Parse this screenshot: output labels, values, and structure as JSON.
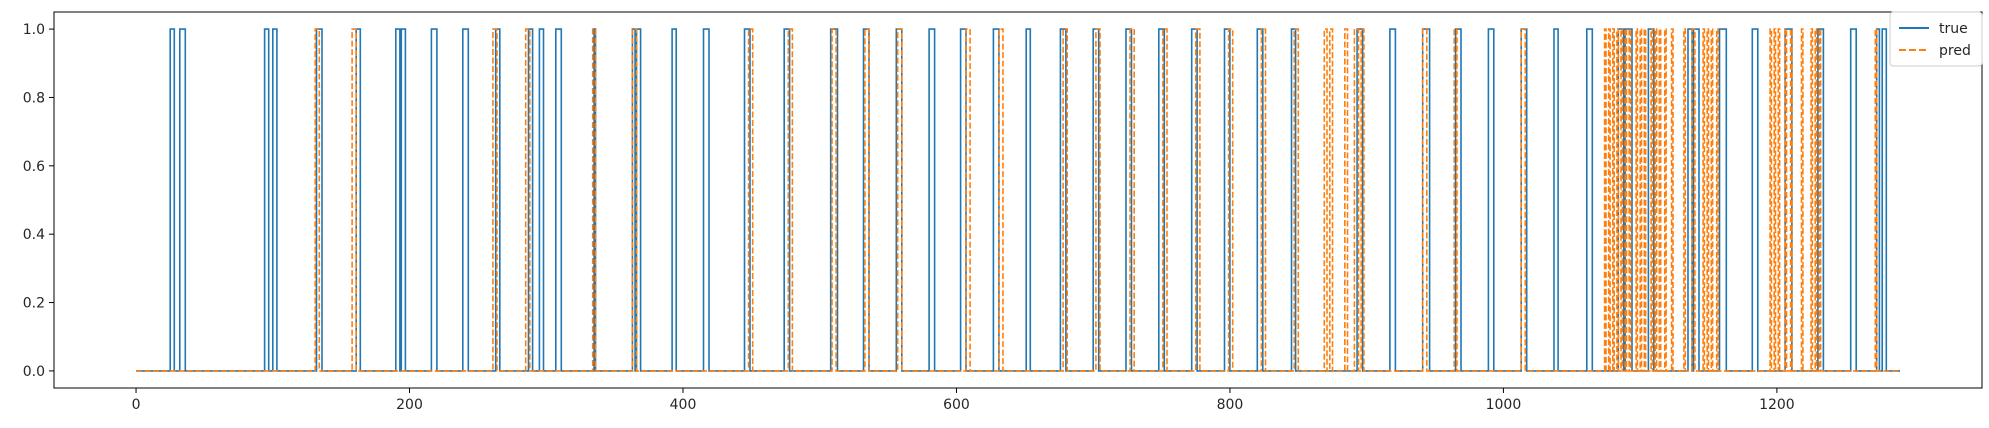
{
  "chart_data": {
    "type": "line",
    "title": "",
    "xlabel": "",
    "ylabel": "",
    "xlim": [
      -60,
      1350
    ],
    "ylim": [
      -0.05,
      1.05
    ],
    "x_ticks": [
      0,
      200,
      400,
      600,
      800,
      1000,
      1200
    ],
    "y_ticks": [
      0.0,
      0.2,
      0.4,
      0.6,
      0.8,
      1.0
    ],
    "x_tick_labels": [
      "0",
      "200",
      "400",
      "600",
      "800",
      "1000",
      "1200"
    ],
    "y_tick_labels": [
      "0.0",
      "0.2",
      "0.4",
      "0.6",
      "0.8",
      "1.0"
    ],
    "x_max": 1290,
    "grid": false,
    "legend_position": "top-right",
    "series": [
      {
        "name": "true",
        "color": "#1f77b4",
        "style": "solid",
        "pulses": [
          [
            25,
            28
          ],
          [
            32,
            36
          ],
          [
            94,
            97
          ],
          [
            100,
            103
          ],
          [
            132,
            136
          ],
          [
            161,
            164
          ],
          [
            190,
            193
          ],
          [
            194,
            197
          ],
          [
            216,
            220
          ],
          [
            239,
            243
          ],
          [
            263,
            266
          ],
          [
            287,
            290
          ],
          [
            295,
            298
          ],
          [
            307,
            311
          ],
          [
            335,
            336
          ],
          [
            363,
            365
          ],
          [
            366,
            369
          ],
          [
            392,
            395
          ],
          [
            415,
            419
          ],
          [
            445,
            449
          ],
          [
            474,
            478
          ],
          [
            508,
            513
          ],
          [
            532,
            536
          ],
          [
            556,
            560
          ],
          [
            580,
            584
          ],
          [
            603,
            607
          ],
          [
            627,
            631
          ],
          [
            651,
            654
          ],
          [
            676,
            680
          ],
          [
            700,
            704
          ],
          [
            724,
            728
          ],
          [
            748,
            752
          ],
          [
            772,
            776
          ],
          [
            796,
            800
          ],
          [
            820,
            824
          ],
          [
            845,
            848
          ],
          [
            893,
            897
          ],
          [
            917,
            921
          ],
          [
            941,
            946
          ],
          [
            965,
            969
          ],
          [
            989,
            993
          ],
          [
            1013,
            1017
          ],
          [
            1037,
            1040
          ],
          [
            1061,
            1065
          ],
          [
            1084,
            1088
          ],
          [
            1089,
            1094
          ],
          [
            1106,
            1110
          ],
          [
            1135,
            1138
          ],
          [
            1139,
            1143
          ],
          [
            1158,
            1163
          ],
          [
            1182,
            1186
          ],
          [
            1206,
            1211
          ],
          [
            1230,
            1234
          ],
          [
            1254,
            1258
          ],
          [
            1273,
            1275
          ],
          [
            1277,
            1280
          ]
        ]
      },
      {
        "name": "pred",
        "color": "#ff7f0e",
        "style": "dashed",
        "pulses": [
          [
            131,
            134
          ],
          [
            158,
            161
          ],
          [
            261,
            264
          ],
          [
            285,
            288
          ],
          [
            334,
            336
          ],
          [
            363,
            366
          ],
          [
            448,
            451
          ],
          [
            477,
            480
          ],
          [
            509,
            512
          ],
          [
            533,
            536
          ],
          [
            557,
            560
          ],
          [
            607,
            610
          ],
          [
            631,
            634
          ],
          [
            678,
            681
          ],
          [
            702,
            705
          ],
          [
            727,
            730
          ],
          [
            751,
            754
          ],
          [
            775,
            778
          ],
          [
            799,
            802
          ],
          [
            823,
            826
          ],
          [
            847,
            850
          ],
          [
            869,
            871
          ],
          [
            873,
            875
          ],
          [
            884,
            886
          ],
          [
            891,
            894
          ],
          [
            896,
            898
          ],
          [
            941,
            944
          ],
          [
            964,
            966
          ],
          [
            1013,
            1016
          ],
          [
            1074,
            1075
          ],
          [
            1077,
            1078
          ],
          [
            1080,
            1081
          ],
          [
            1083,
            1084
          ],
          [
            1086,
            1087
          ],
          [
            1089,
            1090
          ],
          [
            1092,
            1093
          ],
          [
            1097,
            1098
          ],
          [
            1100,
            1101
          ],
          [
            1103,
            1104
          ],
          [
            1108,
            1109
          ],
          [
            1111,
            1112
          ],
          [
            1114,
            1115
          ],
          [
            1118,
            1119
          ],
          [
            1123,
            1124
          ],
          [
            1132,
            1133
          ],
          [
            1138,
            1140
          ],
          [
            1146,
            1147
          ],
          [
            1149,
            1150
          ],
          [
            1152,
            1153
          ],
          [
            1156,
            1157
          ],
          [
            1195,
            1196
          ],
          [
            1198,
            1199
          ],
          [
            1201,
            1202
          ],
          [
            1206,
            1207
          ],
          [
            1210,
            1211
          ],
          [
            1218,
            1219
          ],
          [
            1225,
            1226
          ],
          [
            1228,
            1229
          ],
          [
            1231,
            1232
          ],
          [
            1272,
            1273
          ]
        ]
      }
    ]
  }
}
